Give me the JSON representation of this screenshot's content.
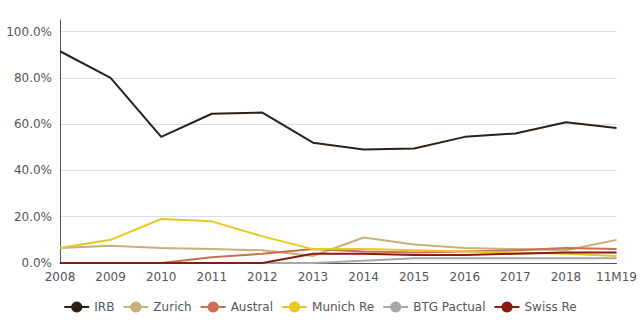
{
  "chart_data": {
    "type": "line",
    "categories": [
      "2008",
      "2009",
      "2010",
      "2011",
      "2012",
      "2013",
      "2014",
      "2015",
      "2016",
      "2017",
      "2018",
      "11M19"
    ],
    "series": [
      {
        "name": "IRB",
        "color": "#2d2016",
        "values": [
          0.915,
          0.8,
          0.545,
          0.645,
          0.65,
          0.52,
          0.49,
          0.495,
          0.545,
          0.56,
          0.608,
          0.583
        ]
      },
      {
        "name": "Zurich",
        "color": "#c8b078",
        "values": [
          0.065,
          0.075,
          0.065,
          0.06,
          0.055,
          0.03,
          0.11,
          0.08,
          0.065,
          0.06,
          0.055,
          0.1
        ]
      },
      {
        "name": "Austral",
        "color": "#c87050",
        "values": [
          0.0,
          0.0,
          0.0,
          0.025,
          0.04,
          0.06,
          0.05,
          0.045,
          0.05,
          0.055,
          0.065,
          0.06
        ]
      },
      {
        "name": "Munich Re",
        "color": "#e8c820",
        "values": [
          0.065,
          0.1,
          0.19,
          0.18,
          0.115,
          0.06,
          0.06,
          0.055,
          0.05,
          0.045,
          0.04,
          0.03
        ]
      },
      {
        "name": "BTG Pactual",
        "color": "#a8a8a8",
        "values": [
          0.0,
          0.0,
          0.0,
          0.0,
          0.0,
          0.0,
          0.01,
          0.02,
          0.02,
          0.02,
          0.02,
          0.02
        ]
      },
      {
        "name": "Swiss Re",
        "color": "#8b1a10",
        "values": [
          0.0,
          0.0,
          0.0,
          0.0,
          0.0,
          0.04,
          0.04,
          0.035,
          0.035,
          0.04,
          0.045,
          0.045
        ]
      }
    ],
    "ylim": [
      0.0,
      1.05
    ],
    "yticks": [
      {
        "value": 0.0,
        "label": "0.0%"
      },
      {
        "value": 0.2,
        "label": "20.0%"
      },
      {
        "value": 0.4,
        "label": "40.0%"
      },
      {
        "value": 0.6,
        "label": "60.0%"
      },
      {
        "value": 0.8,
        "label": "80.0%"
      },
      {
        "value": 1.0,
        "label": "100.0%"
      }
    ],
    "grid": true,
    "legend": "bottom"
  }
}
